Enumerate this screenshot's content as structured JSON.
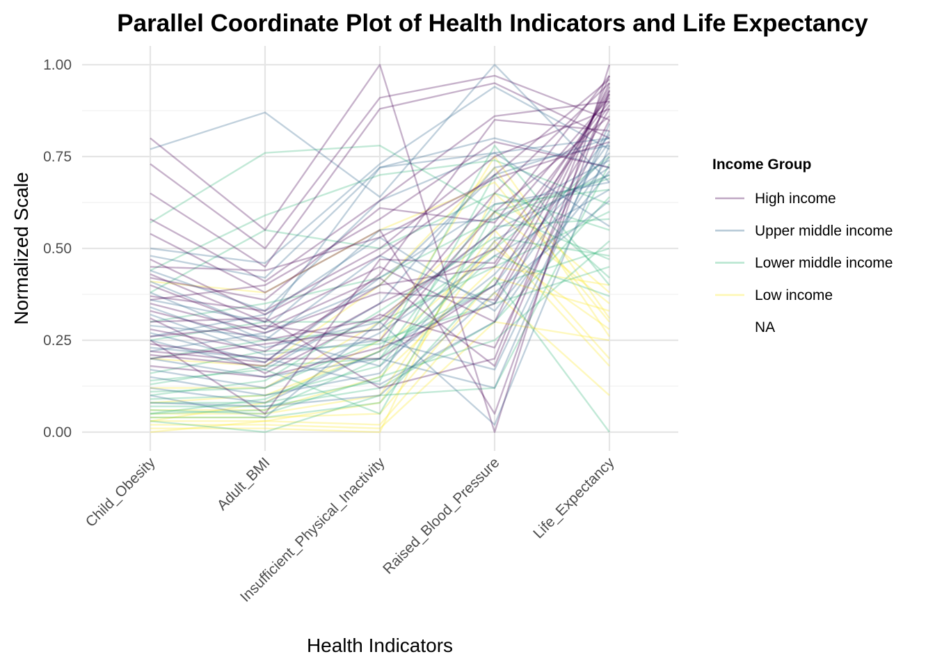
{
  "chart_data": {
    "type": "parallel-coordinates",
    "title": "Parallel Coordinate Plot of Health Indicators and Life Expectancy",
    "xlabel": "Health Indicators",
    "ylabel": "Normalized Scale",
    "ylim": [
      0,
      1
    ],
    "y_ticks": [
      "0.00",
      "0.25",
      "0.50",
      "0.75",
      "1.00"
    ],
    "y_tick_values": [
      0,
      0.25,
      0.5,
      0.75,
      1.0
    ],
    "categories": [
      "Child_Obesity",
      "Adult_BMI",
      "Insufficient_Physical_Inactivity",
      "Raised_Blood_Pressure",
      "Life_Expectancy"
    ],
    "grid": true,
    "legend_position": "right",
    "legend": {
      "title": "Income Group",
      "entries": [
        {
          "label": "High income",
          "color": "#440154"
        },
        {
          "label": "Upper middle income",
          "color": "#31688e"
        },
        {
          "label": "Lower middle income",
          "color": "#35b779"
        },
        {
          "label": "Low income",
          "color": "#fde725"
        },
        {
          "label": "NA",
          "color": ""
        }
      ]
    },
    "line_opacity": 0.3,
    "series": [
      {
        "group": "High income",
        "values": [
          0.8,
          0.55,
          1.0,
          0.0,
          1.0
        ]
      },
      {
        "group": "High income",
        "values": [
          0.73,
          0.5,
          0.91,
          0.97,
          0.85
        ]
      },
      {
        "group": "High income",
        "values": [
          0.65,
          0.45,
          0.88,
          0.95,
          0.8
        ]
      },
      {
        "group": "High income",
        "values": [
          0.58,
          0.41,
          0.63,
          0.86,
          0.9
        ]
      },
      {
        "group": "High income",
        "values": [
          0.54,
          0.38,
          0.55,
          0.05,
          0.93
        ]
      },
      {
        "group": "High income",
        "values": [
          0.47,
          0.32,
          0.48,
          0.7,
          0.96
        ]
      },
      {
        "group": "High income",
        "values": [
          0.43,
          0.3,
          0.45,
          0.3,
          0.95
        ]
      },
      {
        "group": "High income",
        "values": [
          0.4,
          0.28,
          0.42,
          0.18,
          0.92
        ]
      },
      {
        "group": "High income",
        "values": [
          0.37,
          0.33,
          0.5,
          0.75,
          0.88
        ]
      },
      {
        "group": "High income",
        "values": [
          0.35,
          0.27,
          0.38,
          0.36,
          0.94
        ]
      },
      {
        "group": "High income",
        "values": [
          0.33,
          0.25,
          0.31,
          0.55,
          0.91
        ]
      },
      {
        "group": "High income",
        "values": [
          0.3,
          0.31,
          0.12,
          0.2,
          0.97
        ]
      },
      {
        "group": "High income",
        "values": [
          0.28,
          0.22,
          0.4,
          0.45,
          0.89
        ]
      },
      {
        "group": "High income",
        "values": [
          0.26,
          0.29,
          0.25,
          0.6,
          0.86
        ]
      },
      {
        "group": "High income",
        "values": [
          0.24,
          0.2,
          0.2,
          0.4,
          0.93
        ]
      },
      {
        "group": "High income",
        "values": [
          0.22,
          0.19,
          0.43,
          0.85,
          0.82
        ]
      },
      {
        "group": "High income",
        "values": [
          0.21,
          0.18,
          0.35,
          0.5,
          0.9
        ]
      },
      {
        "group": "High income",
        "values": [
          0.2,
          0.24,
          0.28,
          0.65,
          0.95
        ]
      },
      {
        "group": "High income",
        "values": [
          0.18,
          0.15,
          0.23,
          0.35,
          0.88
        ]
      },
      {
        "group": "High income",
        "values": [
          0.31,
          0.16,
          0.32,
          0.23,
          0.85
        ]
      },
      {
        "group": "High income",
        "values": [
          0.45,
          0.44,
          0.53,
          0.69,
          0.79
        ]
      },
      {
        "group": "High income",
        "values": [
          0.36,
          0.4,
          0.58,
          0.79,
          0.72
        ]
      },
      {
        "group": "High income",
        "values": [
          0.25,
          0.05,
          0.47,
          0.46,
          0.92
        ]
      },
      {
        "group": "High income",
        "values": [
          0.42,
          0.36,
          0.61,
          0.57,
          0.97
        ]
      },
      {
        "group": "Upper middle income",
        "values": [
          0.77,
          0.87,
          0.64,
          1.0,
          0.68
        ]
      },
      {
        "group": "Upper middle income",
        "values": [
          0.5,
          0.46,
          0.73,
          0.94,
          0.77
        ]
      },
      {
        "group": "Upper middle income",
        "values": [
          0.48,
          0.42,
          0.72,
          0.8,
          0.72
        ]
      },
      {
        "group": "Upper middle income",
        "values": [
          0.44,
          0.33,
          0.63,
          0.76,
          0.8
        ]
      },
      {
        "group": "Upper middle income",
        "values": [
          0.41,
          0.28,
          0.55,
          0.58,
          0.74
        ]
      },
      {
        "group": "Upper middle income",
        "values": [
          0.38,
          0.25,
          0.48,
          0.35,
          0.79
        ]
      },
      {
        "group": "Upper middle income",
        "values": [
          0.34,
          0.23,
          0.3,
          0.55,
          0.7
        ]
      },
      {
        "group": "Upper middle income",
        "values": [
          0.32,
          0.21,
          0.25,
          0.17,
          0.82
        ]
      },
      {
        "group": "Upper middle income",
        "values": [
          0.29,
          0.26,
          0.18,
          0.43,
          0.76
        ]
      },
      {
        "group": "Upper middle income",
        "values": [
          0.27,
          0.19,
          0.42,
          0.62,
          0.68
        ]
      },
      {
        "group": "Upper middle income",
        "values": [
          0.25,
          0.17,
          0.35,
          0.72,
          0.78
        ]
      },
      {
        "group": "Upper middle income",
        "values": [
          0.23,
          0.2,
          0.13,
          0.3,
          0.75
        ]
      },
      {
        "group": "Upper middle income",
        "values": [
          0.2,
          0.15,
          0.2,
          0.12,
          0.84
        ]
      },
      {
        "group": "Upper middle income",
        "values": [
          0.17,
          0.12,
          0.27,
          0.48,
          0.66
        ]
      },
      {
        "group": "Upper middle income",
        "values": [
          0.15,
          0.1,
          0.16,
          0.52,
          0.72
        ]
      },
      {
        "group": "Upper middle income",
        "values": [
          0.12,
          0.08,
          0.22,
          0.4,
          0.81
        ]
      },
      {
        "group": "Upper middle income",
        "values": [
          0.1,
          0.04,
          0.3,
          0.02,
          0.78
        ]
      },
      {
        "group": "Upper middle income",
        "values": [
          0.08,
          0.07,
          0.1,
          0.38,
          0.63
        ]
      },
      {
        "group": "Upper middle income",
        "values": [
          0.36,
          0.3,
          0.72,
          0.76,
          0.56
        ]
      },
      {
        "group": "Upper middle income",
        "values": [
          0.26,
          0.32,
          0.53,
          0.33,
          0.71
        ]
      },
      {
        "group": "Upper middle income",
        "values": [
          0.22,
          0.27,
          0.4,
          0.7,
          0.8
        ]
      },
      {
        "group": "Lower middle income",
        "values": [
          0.57,
          0.76,
          0.78,
          0.6,
          0.47
        ]
      },
      {
        "group": "Lower middle income",
        "values": [
          0.44,
          0.59,
          0.7,
          0.74,
          0.62
        ]
      },
      {
        "group": "Lower middle income",
        "values": [
          0.38,
          0.55,
          0.5,
          0.65,
          0.55
        ]
      },
      {
        "group": "Lower middle income",
        "values": [
          0.3,
          0.35,
          0.42,
          0.58,
          0.7
        ]
      },
      {
        "group": "Lower middle income",
        "values": [
          0.25,
          0.3,
          0.3,
          0.45,
          0.6
        ]
      },
      {
        "group": "Lower middle income",
        "values": [
          0.2,
          0.25,
          0.28,
          0.5,
          0.75
        ]
      },
      {
        "group": "Lower middle income",
        "values": [
          0.16,
          0.22,
          0.24,
          0.4,
          0.5
        ]
      },
      {
        "group": "Lower middle income",
        "values": [
          0.13,
          0.18,
          0.2,
          0.62,
          0.66
        ]
      },
      {
        "group": "Lower middle income",
        "values": [
          0.11,
          0.12,
          0.25,
          0.35,
          0.45
        ]
      },
      {
        "group": "Lower middle income",
        "values": [
          0.09,
          0.1,
          0.18,
          0.56,
          0.58
        ]
      },
      {
        "group": "Lower middle income",
        "values": [
          0.08,
          0.08,
          0.14,
          0.7,
          0.42
        ]
      },
      {
        "group": "Lower middle income",
        "values": [
          0.07,
          0.07,
          0.12,
          0.3,
          0.64
        ]
      },
      {
        "group": "Lower middle income",
        "values": [
          0.06,
          0.05,
          0.15,
          0.25,
          0.52
        ]
      },
      {
        "group": "Lower middle income",
        "values": [
          0.05,
          0.06,
          0.2,
          0.48,
          0.37
        ]
      },
      {
        "group": "Lower middle income",
        "values": [
          0.04,
          0.04,
          0.08,
          0.42,
          0.0
        ]
      },
      {
        "group": "Lower middle income",
        "values": [
          0.03,
          0.0,
          0.1,
          0.12,
          0.73
        ]
      },
      {
        "group": "Lower middle income",
        "values": [
          0.1,
          0.14,
          0.33,
          0.53,
          0.48
        ]
      },
      {
        "group": "Lower middle income",
        "values": [
          0.14,
          0.17,
          0.05,
          0.6,
          0.69
        ]
      },
      {
        "group": "Lower middle income",
        "values": [
          0.05,
          0.09,
          0.22,
          0.78,
          0.4
        ]
      },
      {
        "group": "Low income",
        "values": [
          0.41,
          0.38,
          0.55,
          0.68,
          0.3
        ]
      },
      {
        "group": "Low income",
        "values": [
          0.2,
          0.18,
          0.4,
          0.72,
          0.26
        ]
      },
      {
        "group": "Low income",
        "values": [
          0.12,
          0.12,
          0.3,
          0.6,
          0.35
        ]
      },
      {
        "group": "Low income",
        "values": [
          0.08,
          0.1,
          0.22,
          0.5,
          0.28
        ]
      },
      {
        "group": "Low income",
        "values": [
          0.06,
          0.06,
          0.15,
          0.45,
          0.4
        ]
      },
      {
        "group": "Low income",
        "values": [
          0.05,
          0.05,
          0.1,
          0.55,
          0.2
        ]
      },
      {
        "group": "Low income",
        "values": [
          0.04,
          0.04,
          0.05,
          0.42,
          0.33
        ]
      },
      {
        "group": "Low income",
        "values": [
          0.03,
          0.03,
          0.02,
          0.38,
          0.1
        ]
      },
      {
        "group": "Low income",
        "values": [
          0.02,
          0.02,
          0.01,
          0.3,
          0.25
        ]
      },
      {
        "group": "Low income",
        "values": [
          0.01,
          0.01,
          0.0,
          0.65,
          0.38
        ]
      },
      {
        "group": "Low income",
        "values": [
          0.0,
          0.03,
          0.08,
          0.52,
          0.18
        ]
      },
      {
        "group": "Low income",
        "values": [
          0.03,
          0.08,
          0.25,
          0.75,
          0.31
        ]
      }
    ]
  }
}
